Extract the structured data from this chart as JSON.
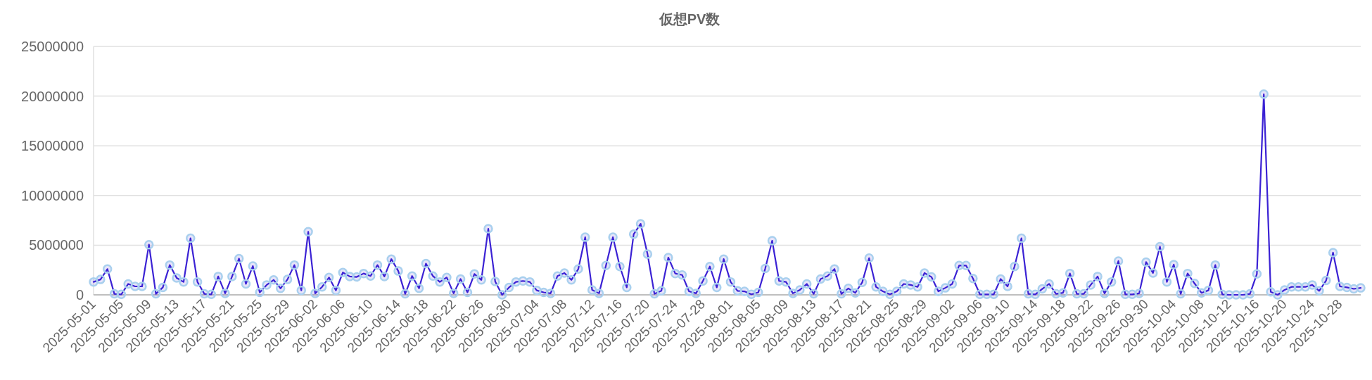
{
  "chart_data": {
    "type": "line",
    "title": "仮想PV数",
    "categories": [
      "2025-05-01",
      null,
      null,
      null,
      "2025-05-05",
      null,
      null,
      null,
      "2025-05-09",
      null,
      null,
      null,
      "2025-05-13",
      null,
      null,
      null,
      "2025-05-17",
      null,
      null,
      null,
      "2025-05-21",
      null,
      null,
      null,
      "2025-05-25",
      null,
      null,
      null,
      "2025-05-29",
      null,
      null,
      null,
      "2025-06-02",
      null,
      null,
      null,
      "2025-06-06",
      null,
      null,
      null,
      "2025-06-10",
      null,
      null,
      null,
      "2025-06-14",
      null,
      null,
      null,
      "2025-06-18",
      null,
      null,
      null,
      "2025-06-22",
      null,
      null,
      null,
      "2025-06-26",
      null,
      null,
      null,
      "2025-06-30",
      null,
      null,
      null,
      "2025-07-04",
      null,
      null,
      null,
      "2025-07-08",
      null,
      null,
      null,
      "2025-07-12",
      null,
      null,
      null,
      "2025-07-16",
      null,
      null,
      null,
      "2025-07-20",
      null,
      null,
      null,
      "2025-07-24",
      null,
      null,
      null,
      "2025-07-28",
      null,
      null,
      null,
      "2025-08-01",
      null,
      null,
      null,
      "2025-08-05",
      null,
      null,
      null,
      "2025-08-09",
      null,
      null,
      null,
      "2025-08-13",
      null,
      null,
      null,
      "2025-08-17",
      null,
      null,
      null,
      "2025-08-21",
      null,
      null,
      null,
      "2025-08-25",
      null,
      null,
      null,
      "2025-08-29",
      null,
      null,
      null,
      "2025-09-02",
      null,
      null,
      null,
      "2025-09-06",
      null,
      null,
      null,
      "2025-09-10",
      null,
      null,
      null,
      "2025-09-14",
      null,
      null,
      null,
      "2025-09-18",
      null,
      null,
      null,
      "2025-09-22",
      null,
      null,
      null,
      "2025-09-26",
      null,
      null,
      null,
      "2025-09-30",
      null,
      null,
      null,
      "2025-10-04",
      null,
      null,
      null,
      "2025-10-08",
      null,
      null,
      null,
      "2025-10-12",
      null,
      null,
      null,
      "2025-10-16",
      null,
      null,
      null,
      "2025-10-20",
      null,
      null,
      null,
      "2025-10-24",
      null,
      null,
      null,
      "2025-10-28",
      null,
      null,
      null
    ],
    "series": [
      {
        "color": "#3b22d4",
        "values": [
          1300000,
          1550000,
          2600000,
          100000,
          50000,
          1100000,
          850000,
          850000,
          5050000,
          100000,
          750000,
          3000000,
          1700000,
          1300000,
          5700000,
          1300000,
          100000,
          50000,
          1850000,
          150000,
          1850000,
          3650000,
          1100000,
          2900000,
          250000,
          1000000,
          1500000,
          650000,
          1550000,
          3000000,
          450000,
          6350000,
          150000,
          800000,
          1750000,
          450000,
          2250000,
          1850000,
          1800000,
          2150000,
          1900000,
          3000000,
          1850000,
          3600000,
          2400000,
          100000,
          1900000,
          650000,
          3150000,
          1900000,
          1300000,
          1750000,
          150000,
          1600000,
          250000,
          2100000,
          1500000,
          6650000,
          1350000,
          0,
          750000,
          1300000,
          1400000,
          1300000,
          450000,
          250000,
          150000,
          1900000,
          2200000,
          1500000,
          2600000,
          5800000,
          500000,
          150000,
          2950000,
          5800000,
          2850000,
          750000,
          6100000,
          7150000,
          4100000,
          100000,
          400000,
          3750000,
          2150000,
          2000000,
          350000,
          150000,
          1400000,
          2850000,
          750000,
          3600000,
          1300000,
          400000,
          350000,
          50000,
          250000,
          2650000,
          5450000,
          1400000,
          1300000,
          150000,
          500000,
          1100000,
          100000,
          1600000,
          1900000,
          2600000,
          100000,
          650000,
          200000,
          1250000,
          3700000,
          800000,
          350000,
          50000,
          350000,
          1100000,
          1000000,
          800000,
          2200000,
          1800000,
          350000,
          700000,
          1100000,
          2950000,
          2950000,
          1650000,
          50000,
          50000,
          50000,
          1600000,
          850000,
          2850000,
          5700000,
          100000,
          50000,
          600000,
          1100000,
          100000,
          200000,
          2150000,
          100000,
          100000,
          1000000,
          1850000,
          150000,
          1300000,
          3400000,
          50000,
          50000,
          150000,
          3300000,
          2200000,
          4850000,
          1300000,
          3050000,
          100000,
          2150000,
          1150000,
          200000,
          450000,
          3000000,
          50000,
          0,
          0,
          0,
          100000,
          2100000,
          20200000,
          300000,
          0,
          500000,
          800000,
          800000,
          800000,
          1000000,
          400000,
          1450000,
          4250000,
          850000,
          750000,
          600000,
          700000
        ]
      }
    ],
    "ylim": [
      0,
      25000000
    ],
    "yticks": [
      0,
      5000000,
      10000000,
      15000000,
      20000000,
      25000000
    ],
    "grid": "y",
    "marker": "circle",
    "line_style": "solid"
  }
}
